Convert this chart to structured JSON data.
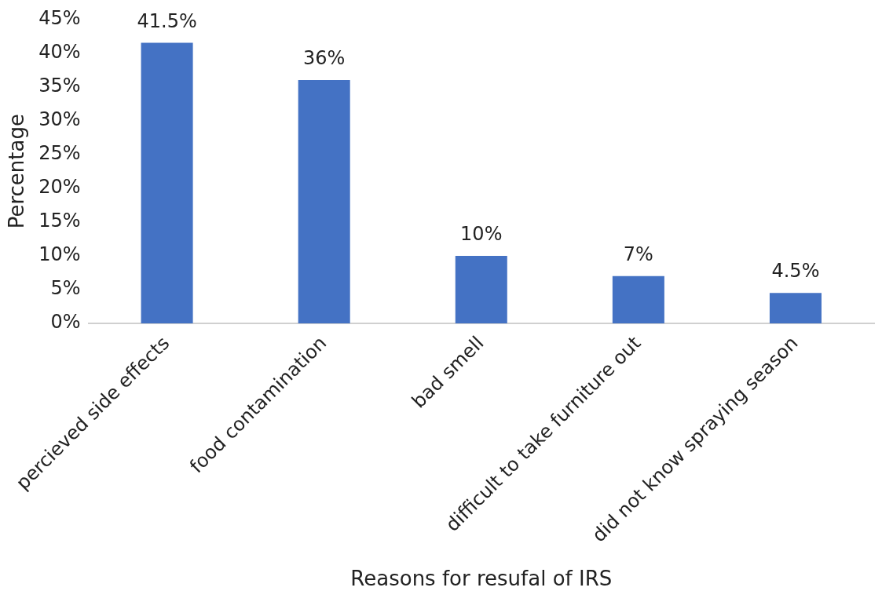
{
  "chart_data": {
    "type": "bar",
    "xlabel": "Reasons for resufal of IRS",
    "ylabel": "Percentage",
    "categories": [
      "percieved side effects",
      "food contamination",
      "bad smell",
      "difficult to take furniture out",
      "did not know spraying season"
    ],
    "values": [
      41.5,
      36,
      10,
      7,
      4.5
    ],
    "value_labels": [
      "41.5%",
      "36%",
      "10%",
      "7%",
      "4.5%"
    ],
    "color": "#4472c4",
    "ylim": [
      0,
      45
    ],
    "yticks": [
      {
        "value": 0,
        "label": "0%"
      },
      {
        "value": 5,
        "label": "5%"
      },
      {
        "value": 10,
        "label": "10%"
      },
      {
        "value": 15,
        "label": "15%"
      },
      {
        "value": 20,
        "label": "20%"
      },
      {
        "value": 25,
        "label": "25%"
      },
      {
        "value": 30,
        "label": "30%"
      },
      {
        "value": 35,
        "label": "35%"
      },
      {
        "value": 40,
        "label": "40%"
      },
      {
        "value": 45,
        "label": "45%"
      }
    ],
    "legend": false
  }
}
